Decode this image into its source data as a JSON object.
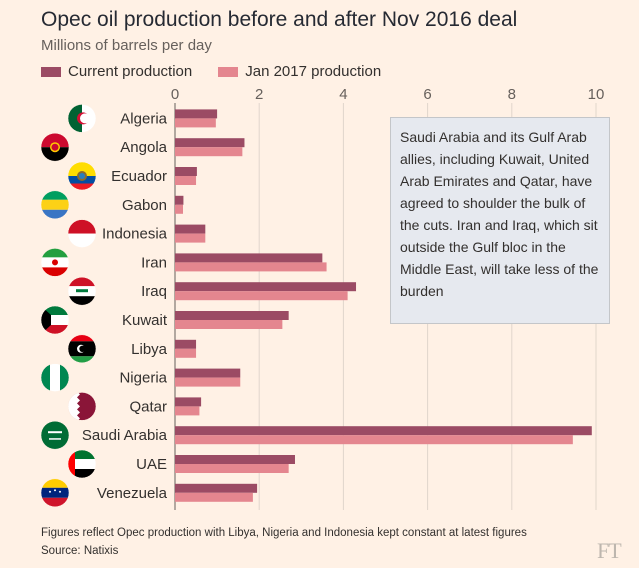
{
  "header": {
    "title": "Opec oil production before and after Nov 2016 deal",
    "subtitle": "Millions of barrels per day"
  },
  "legend": {
    "items": [
      {
        "label": "Current production",
        "color": "#9b4b64"
      },
      {
        "label": "Jan 2017 production",
        "color": "#e4868f"
      }
    ]
  },
  "annotation": {
    "text": "Saudi Arabia and its Gulf Arab allies, including Kuwait, United Arab Emirates and Qatar, have agreed to shoulder the bulk of the cuts. Iran and Iraq, which sit outside the Gulf bloc in the Middle East, will take less of the burden"
  },
  "footer": {
    "note": "Figures reflect Opec production with Libya, Nigeria and Indonesia kept constant at latest figures",
    "source": "Source: Natixis",
    "logo": "FT"
  },
  "chart_data": {
    "type": "bar",
    "orientation": "horizontal",
    "title": "Opec oil production before and after Nov 2016 deal",
    "subtitle": "Millions of barrels per day",
    "categories": [
      "Algeria",
      "Angola",
      "Ecuador",
      "Gabon",
      "Indonesia",
      "Iran",
      "Iraq",
      "Kuwait",
      "Libya",
      "Nigeria",
      "Qatar",
      "Saudi Arabia",
      "UAE",
      "Venezuela"
    ],
    "series": [
      {
        "name": "Current production",
        "color": "#9b4b64",
        "values": [
          1.0,
          1.65,
          0.52,
          0.2,
          0.72,
          3.5,
          4.3,
          2.7,
          0.5,
          1.55,
          0.62,
          9.9,
          2.85,
          1.95
        ]
      },
      {
        "name": "Jan 2017 production",
        "color": "#e4868f",
        "values": [
          0.97,
          1.6,
          0.5,
          0.19,
          0.72,
          3.6,
          4.1,
          2.55,
          0.5,
          1.55,
          0.58,
          9.45,
          2.7,
          1.85
        ]
      }
    ],
    "xlim": [
      0,
      10
    ],
    "xticks": [
      0,
      2,
      4,
      6,
      8,
      10
    ],
    "grid": true,
    "legend_position": "top-left",
    "icons": [
      "algeria-flag-icon",
      "angola-flag-icon",
      "ecuador-flag-icon",
      "gabon-flag-icon",
      "indonesia-flag-icon",
      "iran-flag-icon",
      "iraq-flag-icon",
      "kuwait-flag-icon",
      "libya-flag-icon",
      "nigeria-flag-icon",
      "qatar-flag-icon",
      "saudi-arabia-flag-icon",
      "uae-flag-icon",
      "venezuela-flag-icon"
    ]
  }
}
